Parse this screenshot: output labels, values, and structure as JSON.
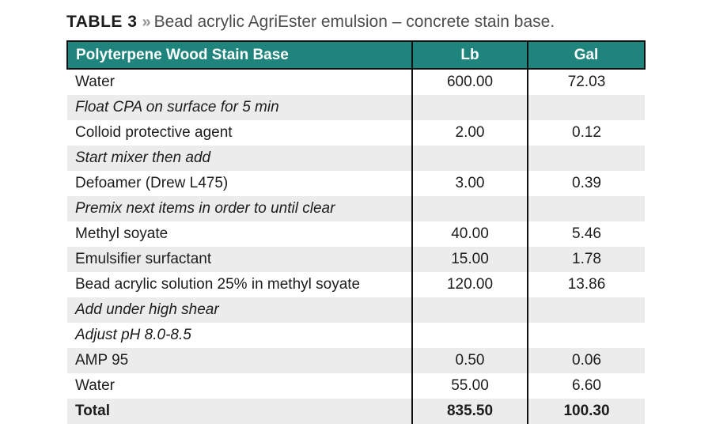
{
  "colors": {
    "header_teal": "#1f857c",
    "row_stripe": "#ececec",
    "table_border": "#111111",
    "caption_gray": "#4d4d4d"
  },
  "title": {
    "label": "TABLE 3",
    "separator": "»",
    "text": "Bead acrylic AgriEster emulsion – concrete stain base."
  },
  "table": {
    "headers": [
      {
        "label": "Polyterpene Wood Stain Base"
      },
      {
        "label": "Lb"
      },
      {
        "label": "Gal"
      }
    ],
    "rows": [
      {
        "name": "Water",
        "lb": "600.00",
        "gal": "72.03",
        "style": "normal"
      },
      {
        "name": "Float CPA on surface for 5 min",
        "lb": "",
        "gal": "",
        "style": "instruction"
      },
      {
        "name": "Colloid protective agent",
        "lb": "2.00",
        "gal": "0.12",
        "style": "normal"
      },
      {
        "name": "Start mixer then add",
        "lb": "",
        "gal": "",
        "style": "instruction"
      },
      {
        "name": "Defoamer (Drew L475)",
        "lb": "3.00",
        "gal": "0.39",
        "style": "normal"
      },
      {
        "name": "Premix next items in order to until clear",
        "lb": "",
        "gal": "",
        "style": "instruction"
      },
      {
        "name": "Methyl soyate",
        "lb": "40.00",
        "gal": "5.46",
        "style": "normal"
      },
      {
        "name": "Emulsifier surfactant",
        "lb": "15.00",
        "gal": "1.78",
        "style": "normal"
      },
      {
        "name": "Bead acrylic solution 25% in methyl soyate",
        "lb": "120.00",
        "gal": "13.86",
        "style": "normal"
      },
      {
        "name": "Add under high shear",
        "lb": "",
        "gal": "",
        "style": "instruction"
      },
      {
        "name": "Adjust pH 8.0-8.5",
        "lb": "",
        "gal": "",
        "style": "instruction"
      },
      {
        "name": "AMP 95",
        "lb": "0.50",
        "gal": "0.06",
        "style": "normal"
      },
      {
        "name": "Water",
        "lb": "55.00",
        "gal": "6.60",
        "style": "normal"
      },
      {
        "name": "Total",
        "lb": "835.50",
        "gal": "100.30",
        "style": "total"
      }
    ]
  },
  "chart_data": {
    "type": "table",
    "title": "TABLE 3 » Bead acrylic AgriEster emulsion – concrete stain base.",
    "columns": [
      "Polyterpene Wood Stain Base",
      "Lb",
      "Gal"
    ],
    "rows": [
      [
        "Water",
        600.0,
        72.03
      ],
      [
        "Float CPA on surface for 5 min",
        null,
        null
      ],
      [
        "Colloid protective agent",
        2.0,
        0.12
      ],
      [
        "Start mixer then add",
        null,
        null
      ],
      [
        "Defoamer (Drew L475)",
        3.0,
        0.39
      ],
      [
        "Premix next items in order to until clear",
        null,
        null
      ],
      [
        "Methyl soyate",
        40.0,
        5.46
      ],
      [
        "Emulsifier surfactant",
        15.0,
        1.78
      ],
      [
        "Bead acrylic solution 25% in methyl soyate",
        120.0,
        13.86
      ],
      [
        "Add under high shear",
        null,
        null
      ],
      [
        "Adjust pH 8.0-8.5",
        null,
        null
      ],
      [
        "AMP 95",
        0.5,
        0.06
      ],
      [
        "Water",
        55.0,
        6.6
      ],
      [
        "Total",
        835.5,
        100.3
      ]
    ],
    "layout_hints": {
      "header_fill": "#1f857c",
      "zebra_striping": true,
      "instruction_rows_italic": true,
      "total_row_bold": true
    }
  }
}
